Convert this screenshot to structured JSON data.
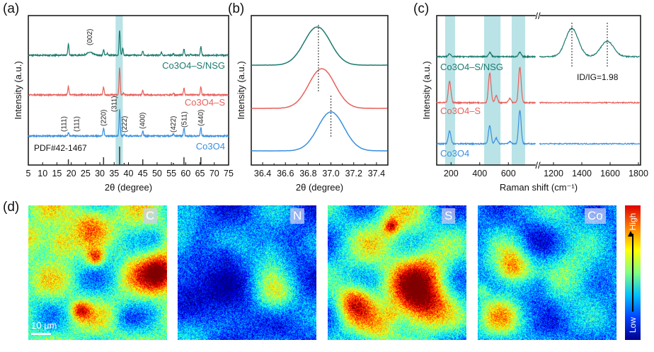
{
  "panels": {
    "a": "(a)",
    "b": "(b)",
    "c": "(c)",
    "d": "(d)"
  },
  "chart_data": [
    {
      "type": "line",
      "panel": "a",
      "xlabel": "2θ (degree)",
      "ylabel": "Intensity (a.u.)",
      "xlim": [
        5,
        75
      ],
      "xticks": [
        5,
        10,
        15,
        20,
        25,
        30,
        35,
        40,
        45,
        50,
        55,
        60,
        65,
        70,
        75
      ],
      "highlight_band": [
        35.5,
        38
      ],
      "series": [
        {
          "name": "Co3O4–S/NSG",
          "color": "#1b7a6e",
          "peaks": [
            [
              19,
              16
            ],
            [
              26.5,
              4
            ],
            [
              31.3,
              8
            ],
            [
              32.6,
              3
            ],
            [
              36.9,
              35
            ],
            [
              38,
              10
            ],
            [
              45,
              6
            ],
            [
              51.5,
              4
            ],
            [
              55.7,
              2
            ],
            [
              59.4,
              9
            ],
            [
              61.7,
              2
            ],
            [
              65.3,
              12
            ]
          ]
        },
        {
          "name": "Co3O4–S",
          "color": "#e8605c",
          "peaks": [
            [
              19,
              12
            ],
            [
              31.3,
              11
            ],
            [
              36.9,
              38
            ],
            [
              38.3,
              3
            ],
            [
              45,
              6
            ],
            [
              55.7,
              3
            ],
            [
              59.4,
              10
            ],
            [
              65.3,
              11
            ]
          ]
        },
        {
          "name": "Co3O4",
          "color": "#3a8fe0",
          "peaks": [
            [
              19,
              5
            ],
            [
              31.3,
              11
            ],
            [
              36.9,
              38
            ],
            [
              38.5,
              3
            ],
            [
              45,
              7
            ],
            [
              55.7,
              3
            ],
            [
              59.4,
              11
            ],
            [
              65.3,
              12
            ]
          ]
        }
      ],
      "reference": {
        "name": "PDF#42-1467",
        "sticks": [
          [
            19,
            7
          ],
          [
            31.3,
            10
          ],
          [
            36.9,
            25
          ],
          [
            38.5,
            2
          ],
          [
            45,
            7
          ],
          [
            55.7,
            2
          ],
          [
            59.4,
            10
          ],
          [
            65.3,
            10
          ]
        ]
      },
      "annotations": [
        [
          "(002)",
          26.5
        ],
        [
          "(111)",
          19
        ],
        [
          "(111)",
          21
        ],
        [
          "(220)",
          31.3
        ],
        [
          "(311)",
          35
        ],
        [
          "(222)",
          38.6
        ],
        [
          "(400)",
          45
        ],
        [
          "(422)",
          55.7
        ],
        [
          "(511)",
          59.6
        ],
        [
          "(440)",
          65.3
        ]
      ]
    },
    {
      "type": "line",
      "panel": "b",
      "xlabel": "2θ (degree)",
      "ylabel": "Intensity (a.u.)",
      "xlim": [
        36.3,
        37.5
      ],
      "xticks": [
        36.4,
        36.5,
        36.6,
        36.7,
        36.8,
        36.9,
        37.0,
        37.1,
        37.2,
        37.3,
        37.4
      ],
      "series": [
        {
          "color": "#1b7a6e",
          "center": 36.88
        },
        {
          "color": "#e8605c",
          "center": 36.92
        },
        {
          "color": "#3a8fe0",
          "center": 37.0
        }
      ],
      "reference_lines": [
        36.89,
        37.0
      ]
    },
    {
      "type": "line",
      "panel": "c",
      "xlabel": "Raman shift (cm⁻¹)",
      "ylabel": "Intensity (a.u.)",
      "xlim": [
        100,
        1815
      ],
      "axis_break": [
        790,
        1100
      ],
      "xticks": [
        200,
        400,
        600,
        1200,
        1400,
        1600,
        1800
      ],
      "highlight_bands": [
        [
          159,
          228
        ],
        [
          431,
          545
        ],
        [
          623,
          717
        ]
      ],
      "series": [
        {
          "name": "Co3O4–S/NSG",
          "color": "#1b7a6e",
          "peaks": [
            [
              190,
              4
            ],
            [
              470,
              6
            ],
            [
              680,
              6
            ],
            [
              1330,
              40
            ],
            [
              1580,
              22
            ]
          ]
        },
        {
          "name": "Co3O4–S",
          "color": "#e8605c",
          "peaks": [
            [
              190,
              30
            ],
            [
              470,
              42
            ],
            [
              515,
              10
            ],
            [
              610,
              6
            ],
            [
              680,
              50
            ]
          ]
        },
        {
          "name": "Co3O4",
          "color": "#3a8fe0",
          "peaks": [
            [
              190,
              18
            ],
            [
              470,
              26
            ],
            [
              515,
              8
            ],
            [
              610,
              3
            ],
            [
              680,
              47
            ]
          ]
        }
      ],
      "reference_lines": [
        1330,
        1580
      ],
      "annotation": "ID/IG=1.98"
    }
  ],
  "maps": {
    "labels": [
      "C",
      "N",
      "S",
      "Co"
    ],
    "scale_bar": "10 μm",
    "colorbar": {
      "high": "High",
      "low": "Low"
    }
  }
}
